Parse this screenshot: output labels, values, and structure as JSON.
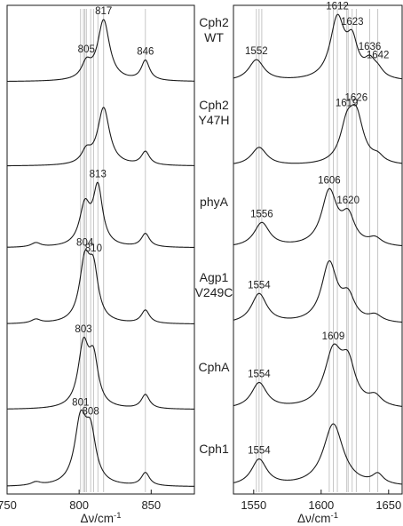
{
  "chart_data": [
    {
      "type": "line",
      "panel": "left",
      "xlabel": "Δν/cm",
      "xlabel_sup": "-1",
      "xlim": [
        750,
        880
      ],
      "xticks": [
        750,
        800,
        850
      ],
      "tick_labels": [
        "750",
        "800",
        "850"
      ],
      "guide_lines": [
        801,
        803,
        804,
        805,
        808,
        810,
        813,
        817,
        846
      ],
      "series": [
        {
          "name": "Cph2 WT",
          "peaks": [
            {
              "x": 805,
              "h": 0.25,
              "w": 4,
              "label": "805"
            },
            {
              "x": 817,
              "h": 1.0,
              "w": 5,
              "label": "817"
            },
            {
              "x": 846,
              "h": 0.33,
              "w": 3.5,
              "label": "846"
            }
          ]
        },
        {
          "name": "Cph2 Y47H",
          "peaks": [
            {
              "x": 805,
              "h": 0.2,
              "w": 4,
              "label": ""
            },
            {
              "x": 817,
              "h": 0.95,
              "w": 5,
              "label": ""
            },
            {
              "x": 846,
              "h": 0.22,
              "w": 3.5,
              "label": ""
            }
          ]
        },
        {
          "name": "phyA",
          "peaks": [
            {
              "x": 804,
              "h": 0.65,
              "w": 4.5,
              "label": ""
            },
            {
              "x": 813,
              "h": 0.95,
              "w": 4,
              "label": "813"
            },
            {
              "x": 846,
              "h": 0.22,
              "w": 3.5,
              "label": ""
            },
            {
              "x": 770,
              "h": 0.07,
              "w": 4,
              "label": ""
            }
          ]
        },
        {
          "name": "Agp1 V249C",
          "peaks": [
            {
              "x": 804,
              "h": 0.9,
              "w": 4.5,
              "label": "804"
            },
            {
              "x": 810,
              "h": 0.7,
              "w": 4,
              "label": "810"
            },
            {
              "x": 846,
              "h": 0.2,
              "w": 3.5,
              "label": ""
            },
            {
              "x": 770,
              "h": 0.06,
              "w": 4,
              "label": ""
            }
          ]
        },
        {
          "name": "CphA",
          "peaks": [
            {
              "x": 803,
              "h": 0.95,
              "w": 4.5,
              "label": "803"
            },
            {
              "x": 810,
              "h": 0.7,
              "w": 4,
              "label": ""
            },
            {
              "x": 846,
              "h": 0.22,
              "w": 3.5,
              "label": ""
            }
          ]
        },
        {
          "name": "Cph1",
          "peaks": [
            {
              "x": 801,
              "h": 0.95,
              "w": 5,
              "label": "801"
            },
            {
              "x": 808,
              "h": 0.7,
              "w": 4.5,
              "label": "808"
            },
            {
              "x": 846,
              "h": 0.2,
              "w": 3.5,
              "label": ""
            },
            {
              "x": 770,
              "h": 0.05,
              "w": 4,
              "label": ""
            }
          ]
        }
      ]
    },
    {
      "type": "line",
      "panel": "right",
      "xlabel": "Δν/cm",
      "xlabel_sup": "-1",
      "xlim": [
        1535,
        1660
      ],
      "xticks": [
        1550,
        1600,
        1650
      ],
      "tick_labels": [
        "1550",
        "1600",
        "1650"
      ],
      "guide_lines": [
        1552,
        1554,
        1556,
        1606,
        1609,
        1612,
        1619,
        1620,
        1623,
        1626,
        1636,
        1642
      ],
      "series": [
        {
          "name": "Cph2 WT",
          "peaks": [
            {
              "x": 1552,
              "h": 0.35,
              "w": 7,
              "label": "1552"
            },
            {
              "x": 1612,
              "h": 1.0,
              "w": 6.5,
              "label": "1612"
            },
            {
              "x": 1623,
              "h": 0.55,
              "w": 5,
              "label": "1623"
            },
            {
              "x": 1636,
              "h": 0.25,
              "w": 5,
              "label": "1636"
            },
            {
              "x": 1642,
              "h": 0.12,
              "w": 5,
              "label": "1642"
            }
          ]
        },
        {
          "name": "Cph2 Y47H",
          "peaks": [
            {
              "x": 1554,
              "h": 0.3,
              "w": 7,
              "label": ""
            },
            {
              "x": 1619,
              "h": 0.55,
              "w": 6,
              "label": "1619"
            },
            {
              "x": 1626,
              "h": 0.75,
              "w": 6.5,
              "label": "1626"
            },
            {
              "x": 1642,
              "h": 0.1,
              "w": 5,
              "label": ""
            }
          ]
        },
        {
          "name": "phyA",
          "peaks": [
            {
              "x": 1556,
              "h": 0.4,
              "w": 7,
              "label": "1556"
            },
            {
              "x": 1606,
              "h": 0.9,
              "w": 7,
              "label": "1606"
            },
            {
              "x": 1620,
              "h": 0.45,
              "w": 6,
              "label": "1620"
            },
            {
              "x": 1640,
              "h": 0.12,
              "w": 6,
              "label": ""
            }
          ]
        },
        {
          "name": "Agp1 V249C",
          "peaks": [
            {
              "x": 1554,
              "h": 0.45,
              "w": 7,
              "label": "1554"
            },
            {
              "x": 1606,
              "h": 0.9,
              "w": 7,
              "label": ""
            },
            {
              "x": 1620,
              "h": 0.35,
              "w": 6,
              "label": ""
            },
            {
              "x": 1640,
              "h": 0.1,
              "w": 6,
              "label": ""
            }
          ]
        },
        {
          "name": "CphA",
          "peaks": [
            {
              "x": 1554,
              "h": 0.4,
              "w": 7,
              "label": "1554"
            },
            {
              "x": 1609,
              "h": 0.85,
              "w": 8,
              "label": "1609"
            },
            {
              "x": 1620,
              "h": 0.6,
              "w": 6.5,
              "label": ""
            },
            {
              "x": 1640,
              "h": 0.15,
              "w": 6,
              "label": ""
            }
          ]
        },
        {
          "name": "Cph1",
          "peaks": [
            {
              "x": 1554,
              "h": 0.4,
              "w": 7,
              "label": "1554"
            },
            {
              "x": 1609,
              "h": 0.95,
              "w": 9,
              "label": ""
            },
            {
              "x": 1642,
              "h": 0.15,
              "w": 5,
              "label": ""
            }
          ]
        }
      ]
    }
  ],
  "sample_labels": [
    [
      "Cph2",
      "WT"
    ],
    [
      "Cph2",
      "Y47H"
    ],
    [
      "phyA"
    ],
    [
      "Agp1",
      "V249C"
    ],
    [
      "CphA"
    ],
    [
      "Cph1"
    ]
  ]
}
